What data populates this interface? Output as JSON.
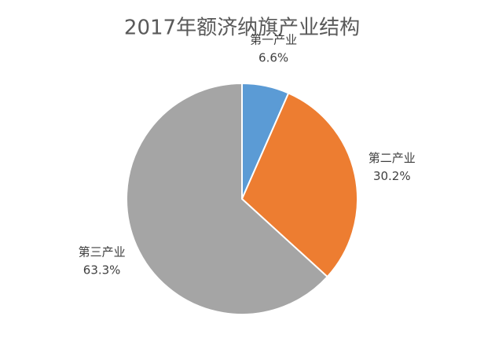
{
  "chart_data": {
    "type": "pie",
    "title": "2017年额济纳旗产业结构",
    "categories": [
      "第一产业",
      "第二产业",
      "第三产业"
    ],
    "values": [
      6.6,
      30.2,
      63.3
    ],
    "value_labels": [
      "6.6%",
      "30.2%",
      "63.3%"
    ],
    "colors": [
      "#5b9bd5",
      "#ed7d31",
      "#a5a5a5"
    ]
  }
}
